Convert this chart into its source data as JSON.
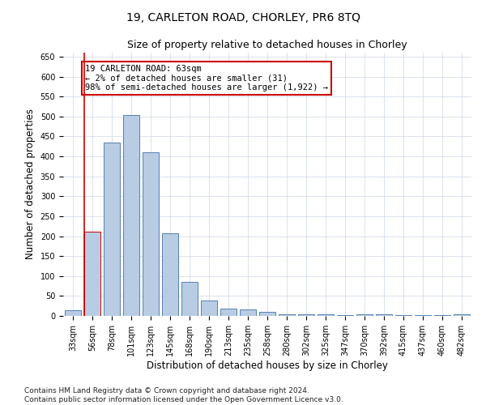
{
  "title": "19, CARLETON ROAD, CHORLEY, PR6 8TQ",
  "subtitle": "Size of property relative to detached houses in Chorley",
  "xlabel": "Distribution of detached houses by size in Chorley",
  "ylabel": "Number of detached properties",
  "footnote": "Contains HM Land Registry data © Crown copyright and database right 2024.\nContains public sector information licensed under the Open Government Licence v3.0.",
  "annotation_line1": "19 CARLETON ROAD: 63sqm",
  "annotation_line2": "← 2% of detached houses are smaller (31)",
  "annotation_line3": "98% of semi-detached houses are larger (1,922) →",
  "categories": [
    "33sqm",
    "56sqm",
    "78sqm",
    "101sqm",
    "123sqm",
    "145sqm",
    "168sqm",
    "190sqm",
    "213sqm",
    "235sqm",
    "258sqm",
    "280sqm",
    "302sqm",
    "325sqm",
    "347sqm",
    "370sqm",
    "392sqm",
    "415sqm",
    "437sqm",
    "460sqm",
    "482sqm"
  ],
  "values": [
    15,
    212,
    435,
    503,
    410,
    207,
    85,
    38,
    18,
    17,
    10,
    5,
    5,
    5,
    3,
    5,
    5,
    3,
    2,
    3,
    5
  ],
  "bar_color": "#b8cce4",
  "bar_edge_color": "#5580b0",
  "highlight_bar_index": 1,
  "highlight_edge_color": "#cc0000",
  "vline_color": "#cc0000",
  "annotation_box_edge_color": "#cc0000",
  "ylim": [
    0,
    660
  ],
  "yticks": [
    0,
    50,
    100,
    150,
    200,
    250,
    300,
    350,
    400,
    450,
    500,
    550,
    600,
    650
  ],
  "background_color": "#ffffff",
  "grid_color": "#ccd6e8",
  "title_fontsize": 10,
  "subtitle_fontsize": 9,
  "axis_label_fontsize": 8.5,
  "tick_fontsize": 7,
  "annotation_fontsize": 7.5,
  "footnote_fontsize": 6.5
}
